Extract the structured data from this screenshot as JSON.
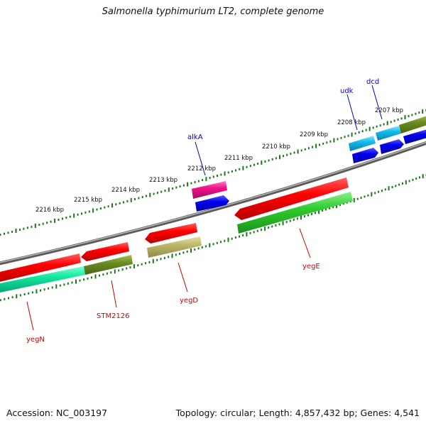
{
  "title": "Salmonella typhimurium LT2, complete genome",
  "footer": {
    "accession": "Accession: NC_003197",
    "topology": "Topology: circular; Length: 4,857,432 bp; Genes: 4,541"
  },
  "colors": {
    "backbone": "#808080",
    "tick": "#1a7a1a",
    "label_forward_strand": "#0000cc",
    "label_reverse_strand": "#cc0000"
  },
  "kbp_labels": [
    "2216 kbp",
    "2215 kbp",
    "2214 kbp",
    "2213 kbp",
    "2212 kbp",
    "2211 kbp",
    "2210 kbp",
    "2209 kbp",
    "2208 kbp",
    "2207 kbp"
  ],
  "genes": [
    {
      "name": "yegN",
      "color": "#11e79f",
      "strand": "-"
    },
    {
      "name": "STM2126",
      "color": "#6b8c22",
      "strand": "-"
    },
    {
      "name": "yegD",
      "color": "#bdb76b",
      "strand": "-"
    },
    {
      "name": "yegE",
      "color": "#2ecc2e",
      "strand": "-"
    },
    {
      "name": "alkA",
      "color": "#ee1189",
      "strand": "+"
    },
    {
      "name": "udk",
      "color": "#11bbee",
      "strand": "+"
    },
    {
      "name": "dcd",
      "color": "#11bbee",
      "strand": "+"
    }
  ]
}
